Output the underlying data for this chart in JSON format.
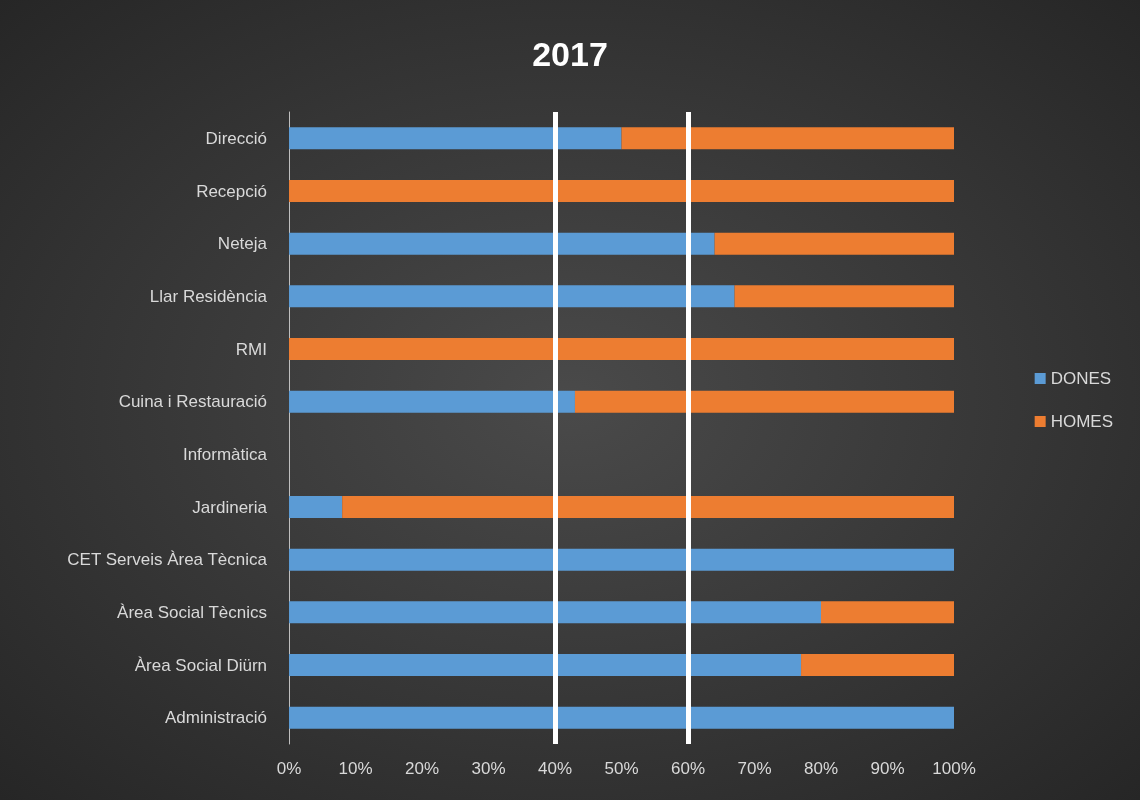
{
  "chart_data": {
    "type": "bar",
    "title": "2017",
    "orientation": "horizontal",
    "stacked": true,
    "categories": [
      "Direcció",
      "Recepció",
      "Neteja",
      "Llar Residència",
      "RMI",
      "Cuina i Restauració",
      "Informàtica",
      "Jardineria",
      "CET Serveis Àrea Tècnica",
      "Àrea Social Tècnics",
      "Àrea Social Diürn",
      "Administració"
    ],
    "series": [
      {
        "name": "DONES",
        "color": "#5b9bd5",
        "values": [
          50,
          0,
          64,
          67,
          0,
          43,
          null,
          8,
          100,
          80,
          77,
          100
        ]
      },
      {
        "name": "HOMES",
        "color": "#ed7d31",
        "values": [
          50,
          100,
          36,
          33,
          100,
          57,
          null,
          92,
          0,
          20,
          23,
          0
        ]
      }
    ],
    "xlim": [
      0,
      100
    ],
    "xticks": [
      {
        "value": 0,
        "label": "0%"
      },
      {
        "value": 10,
        "label": "10%"
      },
      {
        "value": 20,
        "label": "20%"
      },
      {
        "value": 30,
        "label": "30%"
      },
      {
        "value": 40,
        "label": "40%"
      },
      {
        "value": 50,
        "label": "50%"
      },
      {
        "value": 60,
        "label": "60%"
      },
      {
        "value": 70,
        "label": "70%"
      },
      {
        "value": 80,
        "label": "80%"
      },
      {
        "value": 90,
        "label": "90%"
      },
      {
        "value": 100,
        "label": "100%"
      }
    ],
    "ref_lines": [
      {
        "axis": "x",
        "value": 40,
        "color": "#ffffff"
      },
      {
        "axis": "x",
        "value": 60,
        "color": "#ffffff"
      }
    ],
    "legend": "right",
    "grid": false
  }
}
